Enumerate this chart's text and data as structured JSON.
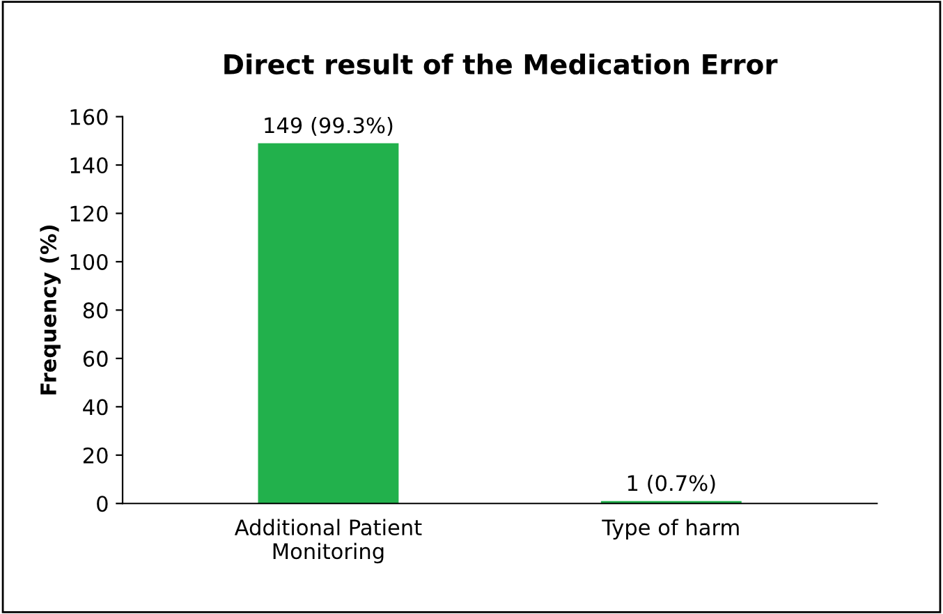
{
  "chart_data": {
    "type": "bar",
    "title": "Direct result of the Medication Error",
    "ylabel": "Frequency (%)",
    "categories": [
      "Additional Patient\nMonitoring",
      "Type of harm"
    ],
    "values": [
      149,
      1
    ],
    "color": "#22b14c",
    "value_labels": [
      "149 (99.3%)",
      "1 (0.7%)"
    ],
    "ylim": [
      0,
      160
    ],
    "yticks": [
      0,
      20,
      40,
      60,
      80,
      100,
      120,
      140,
      160
    ],
    "grid": false
  }
}
